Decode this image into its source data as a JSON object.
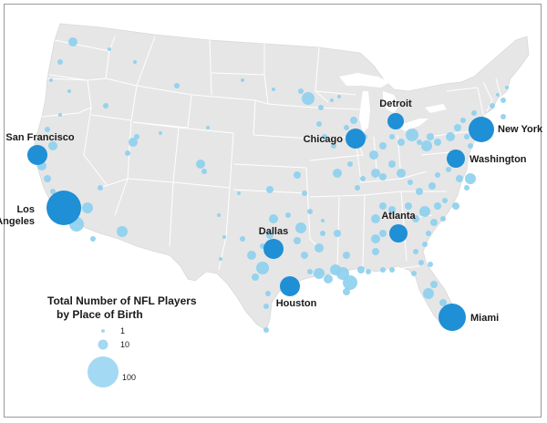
{
  "colors": {
    "land": "#e6e6e6",
    "state_border": "#ffffff",
    "small_bubble": "#8ccfee",
    "major_bubble": "#1f8fd6",
    "legend_bubble": "#a3d9f2",
    "text": "#1a1a1a"
  },
  "legend": {
    "title_line1": "Total Number of NFL Players",
    "title_line2": "by Place of Birth",
    "items": [
      {
        "label": "1",
        "value": 1
      },
      {
        "label": "10",
        "value": 10
      },
      {
        "label": "100",
        "value": 100
      }
    ]
  },
  "major_cities": [
    {
      "label": "Los Angeles",
      "label_lines": [
        "Los",
        "Angeles"
      ],
      "label_side": "left"
    },
    {
      "label": "San Francisco",
      "label_lines": [
        "San Francisco"
      ],
      "label_side": "top-left"
    },
    {
      "label": "Chicago",
      "label_lines": [
        "Chicago"
      ],
      "label_side": "left"
    },
    {
      "label": "Detroit",
      "label_lines": [
        "Detroit"
      ],
      "label_side": "top"
    },
    {
      "label": "New York",
      "label_lines": [
        "New York"
      ],
      "label_side": "right"
    },
    {
      "label": "Washington",
      "label_lines": [
        "Washington"
      ],
      "label_side": "right"
    },
    {
      "label": "Atlanta",
      "label_lines": [
        "Atlanta"
      ],
      "label_side": "top"
    },
    {
      "label": "Dallas",
      "label_lines": [
        "Dallas"
      ],
      "label_side": "top"
    },
    {
      "label": "Houston",
      "label_lines": [
        "Houston"
      ],
      "label_side": "bottom-right"
    },
    {
      "label": "Miami",
      "label_lines": [
        "Miami"
      ],
      "label_side": "right"
    }
  ]
}
